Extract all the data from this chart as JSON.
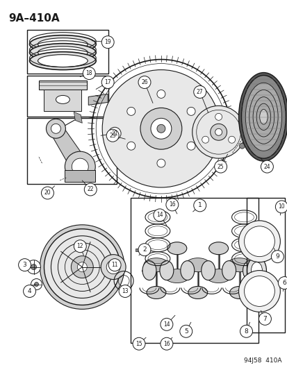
{
  "title": "9A–410A",
  "footer": "94J58  410A",
  "bg_color": "#ffffff",
  "line_color": "#1a1a1a",
  "title_fontsize": 11,
  "footer_fontsize": 6.5,
  "fig_width": 4.14,
  "fig_height": 5.33,
  "dpi": 100
}
